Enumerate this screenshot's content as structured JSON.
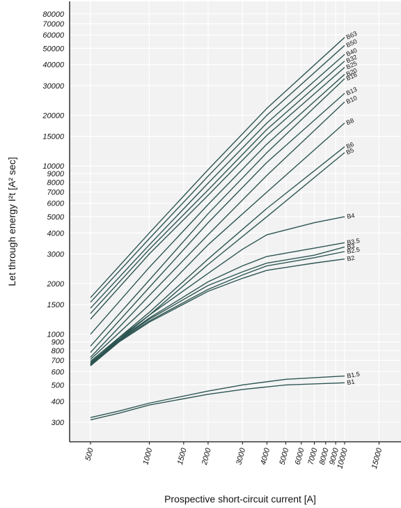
{
  "chart_data": {
    "type": "line",
    "xscale": "log",
    "yscale": "log",
    "xlabel": "Prospective short-circuit current [A]",
    "ylabel": "Let through energy I²t [A² sec]",
    "xlim": [
      500,
      15000
    ],
    "ylim": [
      300,
      80000
    ],
    "grid": true,
    "x_ticks": [
      500,
      1000,
      1500,
      2000,
      3000,
      4000,
      5000,
      6000,
      7000,
      8000,
      9000,
      10000,
      15000
    ],
    "x_tick_labels": [
      "500",
      "1000",
      "1500",
      "2000",
      "3000",
      "4000",
      "5000",
      "6000",
      "7000",
      "8000",
      "9000",
      "10000",
      "15000"
    ],
    "y_ticks": [
      300,
      400,
      500,
      600,
      700,
      800,
      900,
      1000,
      1500,
      2000,
      3000,
      4000,
      5000,
      6000,
      7000,
      8000,
      9000,
      10000,
      15000,
      20000,
      30000,
      40000,
      50000,
      60000,
      70000,
      80000
    ],
    "y_tick_labels": [
      "300",
      "400",
      "500",
      "600",
      "700",
      "800",
      "900",
      "1000",
      "1500",
      "2000",
      "3000",
      "4000",
      "5000",
      "6000",
      "7000",
      "8000",
      "9000",
      "10000",
      "15000",
      "20000",
      "30000",
      "40000",
      "50000",
      "60000",
      "70000",
      "80000"
    ],
    "series": [
      {
        "name": "B63",
        "x": [
          500,
          1000,
          2000,
          4000,
          10000
        ],
        "y": [
          1650,
          4000,
          9500,
          22000,
          58000
        ]
      },
      {
        "name": "B50",
        "x": [
          500,
          1000,
          2000,
          4000,
          10000
        ],
        "y": [
          1550,
          3700,
          8700,
          20000,
          52000
        ]
      },
      {
        "name": "B40",
        "x": [
          500,
          1000,
          2000,
          4000,
          10000
        ],
        "y": [
          1430,
          3400,
          7900,
          18000,
          46000
        ]
      },
      {
        "name": "B32",
        "x": [
          500,
          1000,
          2000,
          4000,
          10000
        ],
        "y": [
          1330,
          3200,
          7200,
          16500,
          42000
        ]
      },
      {
        "name": "B25",
        "x": [
          500,
          1000,
          2000,
          4000,
          10000
        ],
        "y": [
          1230,
          3000,
          6700,
          15200,
          38500
        ]
      },
      {
        "name": "B20",
        "x": [
          500,
          1000,
          2000,
          4000,
          10000
        ],
        "y": [
          1000,
          2500,
          5900,
          13500,
          35000
        ]
      },
      {
        "name": "B16",
        "x": [
          500,
          1000,
          2000,
          4000,
          10000
        ],
        "y": [
          850,
          2100,
          5200,
          12000,
          33000
        ]
      },
      {
        "name": "B13",
        "x": [
          500,
          1000,
          2000,
          4000,
          10000
        ],
        "y": [
          780,
          1900,
          4600,
          10500,
          27000
        ]
      },
      {
        "name": "B10",
        "x": [
          500,
          1000,
          2000,
          4000,
          10000
        ],
        "y": [
          730,
          1700,
          3900,
          8800,
          24000
        ]
      },
      {
        "name": "B8",
        "x": [
          500,
          1000,
          2000,
          4000,
          10000
        ],
        "y": [
          710,
          1500,
          3400,
          7000,
          18000
        ]
      },
      {
        "name": "B6",
        "x": [
          500,
          1000,
          2000,
          4000,
          10000
        ],
        "y": [
          690,
          1350,
          2800,
          5600,
          13000
        ]
      },
      {
        "name": "B5",
        "x": [
          500,
          1000,
          2000,
          4000,
          10000
        ],
        "y": [
          680,
          1300,
          2600,
          5000,
          12000
        ]
      },
      {
        "name": "B4",
        "x": [
          500,
          700,
          1000,
          2000,
          3000,
          4000,
          7000,
          10000
        ],
        "y": [
          670,
          950,
          1300,
          2300,
          3200,
          3900,
          4600,
          5000
        ]
      },
      {
        "name": "B3.5",
        "x": [
          500,
          700,
          1000,
          2000,
          3000,
          4000,
          7000,
          10000
        ],
        "y": [
          665,
          930,
          1250,
          2050,
          2550,
          2900,
          3250,
          3500
        ]
      },
      {
        "name": "B3",
        "x": [
          500,
          700,
          1000,
          2000,
          3000,
          4000,
          7000,
          10000
        ],
        "y": [
          660,
          920,
          1230,
          1950,
          2350,
          2650,
          2950,
          3300
        ]
      },
      {
        "name": "B2.5",
        "x": [
          500,
          700,
          1000,
          2000,
          3000,
          4000,
          7000,
          10000
        ],
        "y": [
          655,
          910,
          1200,
          1850,
          2250,
          2550,
          2850,
          3100
        ]
      },
      {
        "name": "B2",
        "x": [
          500,
          700,
          1000,
          2000,
          3000,
          4000,
          7000,
          10000
        ],
        "y": [
          650,
          900,
          1180,
          1800,
          2150,
          2400,
          2650,
          2800
        ]
      },
      {
        "name": "B1.5",
        "x": [
          500,
          700,
          1000,
          2000,
          3000,
          5000,
          10000
        ],
        "y": [
          320,
          350,
          390,
          460,
          500,
          540,
          565
        ]
      },
      {
        "name": "B1",
        "x": [
          500,
          700,
          1000,
          2000,
          3000,
          5000,
          10000
        ],
        "y": [
          310,
          340,
          380,
          440,
          470,
          500,
          515
        ]
      }
    ],
    "colors": {
      "line": "#2c5552",
      "plot_bg": "#f2f2f2",
      "grid": "#ffffff",
      "axis": "#111111"
    }
  }
}
